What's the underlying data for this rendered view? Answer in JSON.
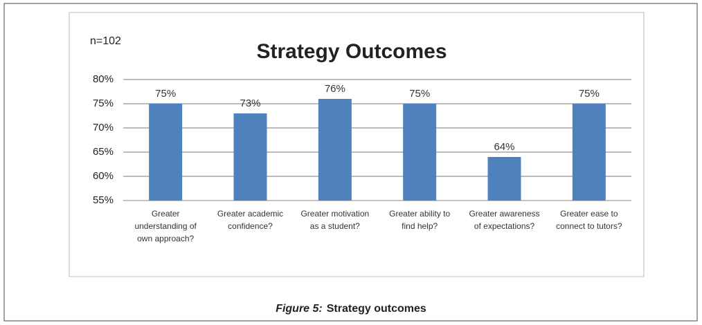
{
  "chart_data": {
    "type": "bar",
    "title": "Strategy Outcomes",
    "annotation": "n=102",
    "categories": [
      "Greater understanding of own approach?",
      "Greater academic confidence?",
      "Greater motivation as a student?",
      "Greater ability to find help?",
      "Greater awareness of expectations?",
      "Greater ease to connect to tutors?"
    ],
    "values": [
      75,
      73,
      76,
      75,
      64,
      75
    ],
    "value_labels": [
      "75%",
      "73%",
      "76%",
      "75%",
      "64%",
      "75%"
    ],
    "color": "#4f81bd",
    "ylim": [
      55,
      80
    ],
    "yticks": [
      {
        "value": 55,
        "label": "55%"
      },
      {
        "value": 60,
        "label": "60%"
      },
      {
        "value": 65,
        "label": "65%"
      },
      {
        "value": 70,
        "label": "70%"
      },
      {
        "value": 75,
        "label": "75%"
      },
      {
        "value": 80,
        "label": "80%"
      }
    ],
    "grid": true
  },
  "caption": {
    "label": "Figure 5:",
    "text": "Strategy outcomes"
  }
}
